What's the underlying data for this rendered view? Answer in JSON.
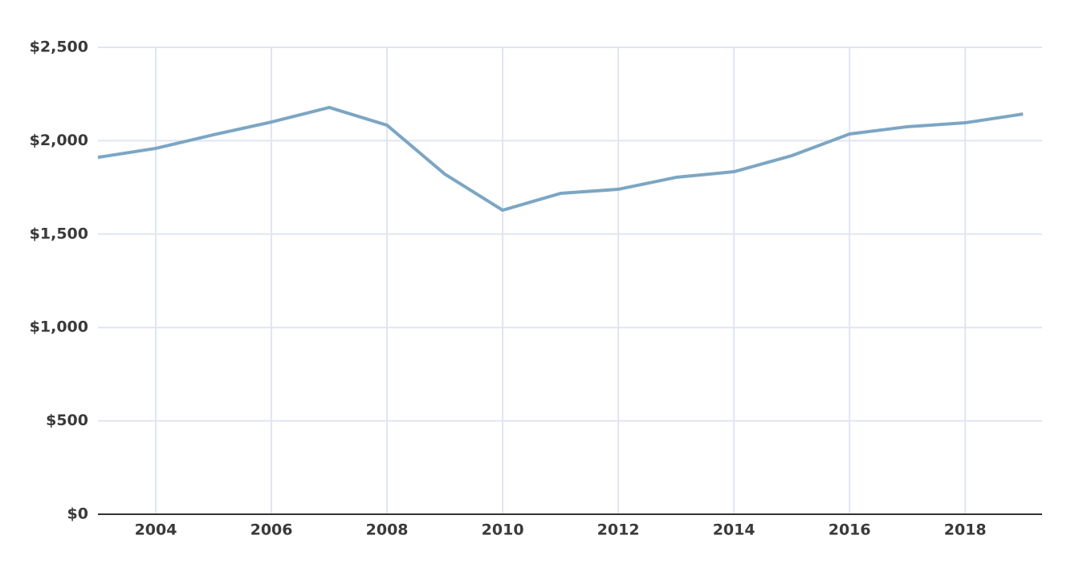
{
  "chart_data": {
    "type": "line",
    "x": [
      2003,
      2004,
      2005,
      2006,
      2007,
      2008,
      2009,
      2010,
      2011,
      2012,
      2013,
      2014,
      2015,
      2016,
      2017,
      2018,
      2019
    ],
    "series": [
      {
        "color": "#7ca6c3",
        "values": [
          1911,
          1959,
          2032,
          2100,
          2178,
          2083,
          1821,
          1628,
          1718,
          1740,
          1804,
          1834,
          1920,
          2036,
          2075,
          2096,
          2143
        ]
      }
    ],
    "xlim": [
      2003,
      2019.33
    ],
    "xticks": [
      2004,
      2006,
      2008,
      2010,
      2012,
      2014,
      2016,
      2018
    ],
    "ylim": [
      0,
      2500
    ],
    "yticks": [
      {
        "value": 0,
        "label": "$0"
      },
      {
        "value": 500,
        "label": "$500"
      },
      {
        "value": 1000,
        "label": "$1,000"
      },
      {
        "value": 1500,
        "label": "$1,500"
      },
      {
        "value": 2000,
        "label": "$2,000"
      },
      {
        "value": 2500,
        "label": "$2,500"
      }
    ],
    "grid": true
  }
}
